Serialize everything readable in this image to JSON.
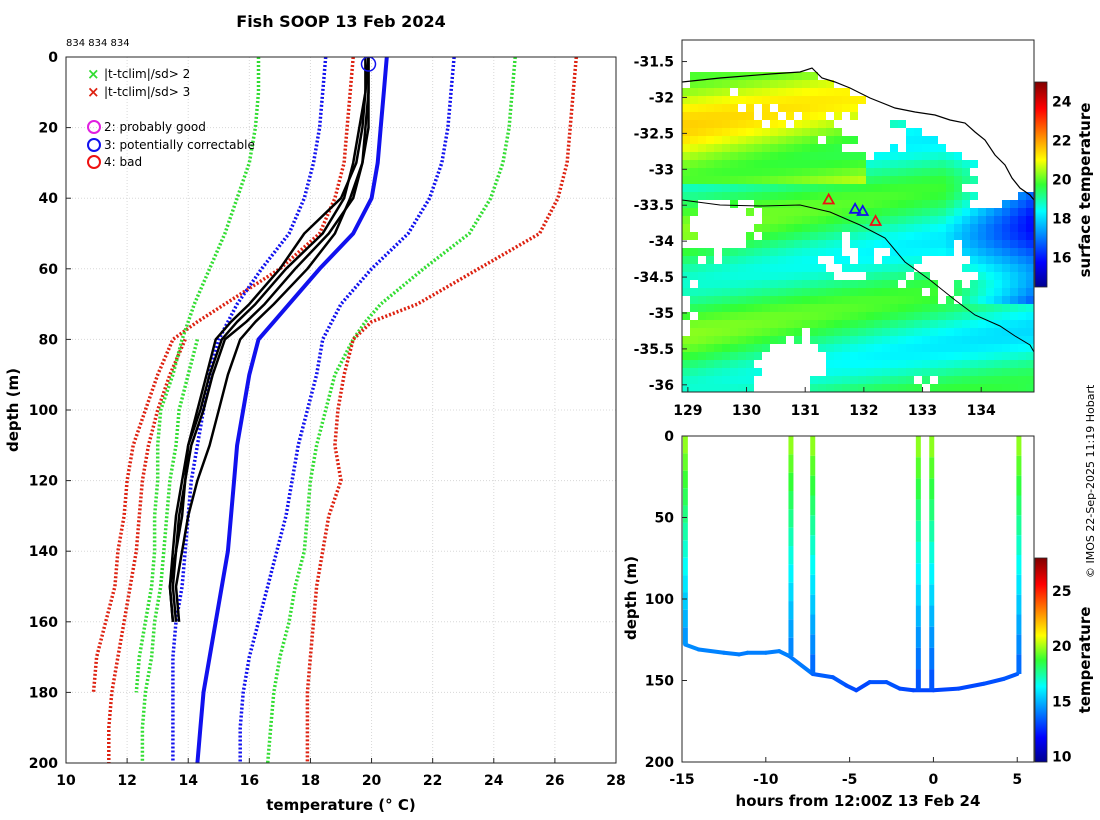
{
  "title": "Fish SOOP 13 Feb 2024",
  "profile_ids": "834 834 834",
  "credit": "© IMOS 22-Sep-2025 11:19 Hobart",
  "colors": {
    "sd2": "#33dd33",
    "sd3": "#dd2211",
    "probably_good": "#e020e0",
    "correctable": "#1111ee",
    "bad": "#ee1111",
    "profile": "#000000"
  },
  "legend": [
    {
      "symbol": "x",
      "label": "|t-tclim|/sd> 2"
    },
    {
      "symbol": "x",
      "label": "|t-tclim|/sd> 3"
    },
    {
      "symbol": "o",
      "label": "2: probably good"
    },
    {
      "symbol": "o",
      "label": "3: potentially correctable"
    },
    {
      "symbol": "o",
      "label": "4: bad"
    }
  ],
  "chart_data": [
    {
      "type": "line",
      "title": "Fish SOOP 13 Feb 2024",
      "xlabel": "temperature (° C)",
      "ylabel": "depth (m)",
      "xlim": [
        10,
        28
      ],
      "ylim": [
        200,
        0
      ],
      "xticks": [
        "10",
        "12",
        "14",
        "16",
        "18",
        "20",
        "22",
        "24",
        "26",
        "28"
      ],
      "yticks": [
        "0",
        "20",
        "40",
        "60",
        "80",
        "100",
        "120",
        "140",
        "160",
        "180",
        "200"
      ],
      "grid": true,
      "depth": [
        0,
        10,
        20,
        30,
        40,
        50,
        60,
        70,
        75,
        80,
        90,
        100,
        110,
        120,
        130,
        140,
        150,
        160,
        170,
        180,
        190,
        200
      ],
      "series": [
        {
          "name": "clim -3sd a",
          "style": "dotted",
          "color": "sd3",
          "values": [
            19.4,
            19.3,
            19.2,
            19.1,
            18.8,
            18.3,
            17.0,
            15.2,
            14.3,
            13.5,
            13.0,
            12.6,
            12.2,
            12.0,
            11.9,
            11.7,
            11.6,
            11.3,
            11.0,
            10.9,
            null,
            null
          ]
        },
        {
          "name": "clim -3sd b",
          "style": "dotted",
          "color": "sd3",
          "values": [
            null,
            null,
            null,
            null,
            null,
            null,
            null,
            null,
            null,
            13.9,
            13.4,
            13.0,
            12.7,
            12.5,
            12.4,
            12.3,
            12.1,
            11.9,
            11.7,
            11.5,
            11.4,
            11.4
          ]
        },
        {
          "name": "clim -2sd a",
          "style": "dotted",
          "color": "sd2",
          "values": [
            16.3,
            16.3,
            16.2,
            16.0,
            15.6,
            15.2,
            14.7,
            14.2,
            14.0,
            13.8,
            13.5,
            13.1,
            13.0,
            13.0,
            12.9,
            12.9,
            12.8,
            12.6,
            12.4,
            12.3,
            null,
            null
          ]
        },
        {
          "name": "clim -2sd b",
          "style": "dotted",
          "color": "sd2",
          "values": [
            null,
            null,
            null,
            null,
            null,
            null,
            null,
            null,
            null,
            14.3,
            14.0,
            13.7,
            13.6,
            13.4,
            13.3,
            13.2,
            13.1,
            12.9,
            12.8,
            12.6,
            12.5,
            12.5
          ]
        },
        {
          "name": "clim mean",
          "style": "solid",
          "color": "correctable",
          "values": [
            20.5,
            20.4,
            20.3,
            20.2,
            20.0,
            19.4,
            18.3,
            17.3,
            16.8,
            16.3,
            16.0,
            15.8,
            15.6,
            15.5,
            15.4,
            15.3,
            15.1,
            14.9,
            14.7,
            14.5,
            14.4,
            14.3
          ]
        },
        {
          "name": "clim -1sd",
          "style": "dotted",
          "color": "correctable",
          "values": [
            18.5,
            18.4,
            18.3,
            18.1,
            17.8,
            17.3,
            16.4,
            15.6,
            15.3,
            15.0,
            14.7,
            14.5,
            14.3,
            14.1,
            14.0,
            13.9,
            13.8,
            13.6,
            13.5,
            13.5,
            13.5,
            13.5
          ]
        },
        {
          "name": "clim +1sd",
          "style": "dotted",
          "color": "correctable",
          "values": [
            22.7,
            22.6,
            22.5,
            22.3,
            21.9,
            21.2,
            20.0,
            19.0,
            18.7,
            18.4,
            18.2,
            17.9,
            17.6,
            17.4,
            17.2,
            16.9,
            16.6,
            16.3,
            16.0,
            15.8,
            15.7,
            15.7
          ]
        },
        {
          "name": "clim +2sd",
          "style": "dotted",
          "color": "sd2",
          "values": [
            24.7,
            24.6,
            24.5,
            24.3,
            23.9,
            23.2,
            21.7,
            20.3,
            19.8,
            19.4,
            18.8,
            18.5,
            18.2,
            18.0,
            17.9,
            17.8,
            17.5,
            17.3,
            17.0,
            16.8,
            16.7,
            16.6
          ]
        },
        {
          "name": "clim +3sd",
          "style": "dotted",
          "color": "sd3",
          "values": [
            26.7,
            26.6,
            26.5,
            26.4,
            26.1,
            25.5,
            23.5,
            21.5,
            20.0,
            19.4,
            19.1,
            18.9,
            18.8,
            19.0,
            18.6,
            18.4,
            18.2,
            18.1,
            18.0,
            17.9,
            17.9,
            17.9
          ]
        },
        {
          "name": "profile 1",
          "style": "solid",
          "color": "profile",
          "values": [
            19.9,
            19.9,
            19.8,
            19.7,
            19.4,
            18.6,
            17.5,
            16.5,
            15.9,
            15.2,
            14.8,
            14.5,
            14.1,
            13.9,
            13.7,
            13.6,
            13.5,
            13.6,
            null,
            null,
            null,
            null
          ]
        },
        {
          "name": "profile 2",
          "style": "solid",
          "color": "profile",
          "values": [
            19.9,
            19.8,
            19.7,
            19.5,
            19.0,
            17.8,
            17.0,
            16.0,
            15.4,
            14.9,
            14.6,
            14.3,
            14.0,
            13.8,
            13.6,
            13.5,
            13.4,
            13.5,
            null,
            null,
            null,
            null
          ]
        },
        {
          "name": "profile 3",
          "style": "solid",
          "color": "profile",
          "values": [
            19.9,
            19.9,
            19.9,
            19.7,
            19.3,
            18.8,
            17.9,
            16.8,
            16.2,
            15.7,
            15.3,
            15.0,
            14.7,
            14.3,
            14.0,
            13.8,
            13.6,
            13.7,
            null,
            null,
            null,
            null
          ]
        },
        {
          "name": "profile 4",
          "style": "solid",
          "color": "profile",
          "values": [
            19.8,
            19.8,
            19.6,
            19.4,
            19.1,
            18.4,
            17.2,
            16.2,
            15.6,
            15.1,
            14.7,
            14.4,
            14.0,
            13.9,
            13.8,
            13.6,
            13.4,
            13.5,
            null,
            null,
            null,
            null
          ]
        }
      ],
      "flags": [
        {
          "type": "potentially correctable",
          "x": 19.9,
          "depth": 2
        }
      ]
    },
    {
      "type": "heatmap",
      "xlim": [
        128.9,
        134.9
      ],
      "ylim": [
        -36.1,
        -31.2
      ],
      "xticks": [
        "129",
        "130",
        "131",
        "132",
        "133",
        "134"
      ],
      "yticks": [
        "-31.5",
        "-32",
        "-32.5",
        "-33",
        "-33.5",
        "-34",
        "-34.5",
        "-35",
        "-35.5",
        "-36"
      ],
      "colorbar_label": "surface temperature",
      "colorbar_range": [
        14.5,
        25
      ],
      "colorbar_ticks": [
        "16",
        "18",
        "20",
        "22",
        "24"
      ],
      "track": [
        {
          "lon": 131.4,
          "lat": -33.42,
          "marker": "red-triangle"
        },
        {
          "lon": 131.85,
          "lat": -33.55,
          "marker": "blue-triangle"
        },
        {
          "lon": 131.98,
          "lat": -33.58,
          "marker": "blue-triangle"
        },
        {
          "lon": 132.2,
          "lat": -33.72,
          "marker": "red-triangle"
        }
      ]
    },
    {
      "type": "scatter",
      "xlabel": "hours from 12:00Z 13 Feb 24",
      "ylabel": "depth (m)",
      "xlim": [
        -15,
        6
      ],
      "ylim": [
        200,
        0
      ],
      "xticks": [
        "-15",
        "-10",
        "-5",
        "0",
        "5"
      ],
      "yticks": [
        "0",
        "50",
        "100",
        "150",
        "200"
      ],
      "colorbar_label": "temperature",
      "colorbar_range": [
        9.5,
        28
      ],
      "colorbar_ticks": [
        "10",
        "15",
        "20",
        "25"
      ],
      "bottom_depth": [
        {
          "h": -14.8,
          "d": 128
        },
        {
          "h": -14.0,
          "d": 131
        },
        {
          "h": -12.5,
          "d": 133
        },
        {
          "h": -11.6,
          "d": 134
        },
        {
          "h": -11.1,
          "d": 133
        },
        {
          "h": -10.0,
          "d": 133
        },
        {
          "h": -9.2,
          "d": 132
        },
        {
          "h": -8.6,
          "d": 135
        },
        {
          "h": -7.2,
          "d": 146
        },
        {
          "h": -6.0,
          "d": 148
        },
        {
          "h": -5.2,
          "d": 153
        },
        {
          "h": -4.6,
          "d": 156
        },
        {
          "h": -3.8,
          "d": 151
        },
        {
          "h": -2.8,
          "d": 151
        },
        {
          "h": -2.0,
          "d": 155
        },
        {
          "h": -1.2,
          "d": 156
        },
        {
          "h": 0.0,
          "d": 156
        },
        {
          "h": 1.5,
          "d": 155
        },
        {
          "h": 3.0,
          "d": 152
        },
        {
          "h": 4.2,
          "d": 149
        },
        {
          "h": 5.0,
          "d": 146
        }
      ],
      "profiles_at_hours": [
        -14.8,
        -8.5,
        -7.2,
        -0.9,
        -0.1,
        5.1
      ]
    }
  ]
}
